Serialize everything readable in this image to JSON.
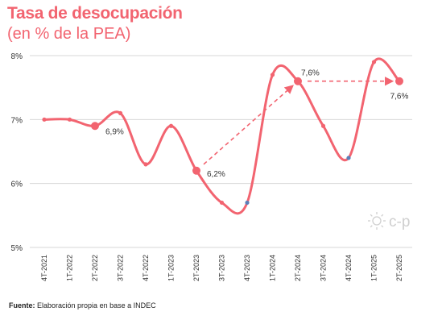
{
  "colors": {
    "accent": "#f26470",
    "title": "#f26470",
    "marker_blue": "#5b7fb8",
    "grid": "#d7d7d7",
    "text": "#333333"
  },
  "header": {
    "title": "Tasa de desocupación",
    "subtitle": "(en % de la PEA)"
  },
  "source": {
    "label": "Fuente:",
    "text": "Elaboración propia en base a INDEC"
  },
  "logo": {
    "text": "c-p",
    "icon": "sun-icon"
  },
  "chart_data": {
    "type": "line",
    "title": "Tasa de desocupación",
    "subtitle": "(en % de la PEA)",
    "categories": [
      "4T-2021",
      "1T-2022",
      "2T-2022",
      "3T-2022",
      "4T-2022",
      "1T-2023",
      "2T-2023",
      "3T-2023",
      "4T-2023",
      "1T-2024",
      "2T-2024",
      "3T-2024",
      "4T-2024",
      "1T-2025",
      "2T-2025"
    ],
    "series": [
      {
        "values": [
          7.0,
          7.0,
          6.9,
          7.1,
          6.3,
          6.9,
          6.2,
          5.7,
          5.7,
          7.7,
          7.6,
          6.9,
          6.4,
          7.9,
          7.6
        ]
      }
    ],
    "ylim": [
      5,
      8
    ],
    "yticks": [
      5,
      6,
      7,
      8
    ],
    "ytick_labels": [
      "5%",
      "6%",
      "7%",
      "8%"
    ],
    "grid": true,
    "highlighted_points": [
      {
        "category": "2T-2022",
        "label": "6,9%"
      },
      {
        "category": "2T-2023",
        "label": "6,2%"
      },
      {
        "category": "2T-2024",
        "label": "7,6%"
      },
      {
        "category": "2T-2025",
        "label": "7,6%"
      }
    ],
    "blue_points": [
      "4T-2023",
      "4T-2024"
    ],
    "arrows": [
      {
        "from": "2T-2023",
        "to": "2T-2024"
      },
      {
        "from": "2T-2024",
        "to": "2T-2025"
      }
    ]
  }
}
